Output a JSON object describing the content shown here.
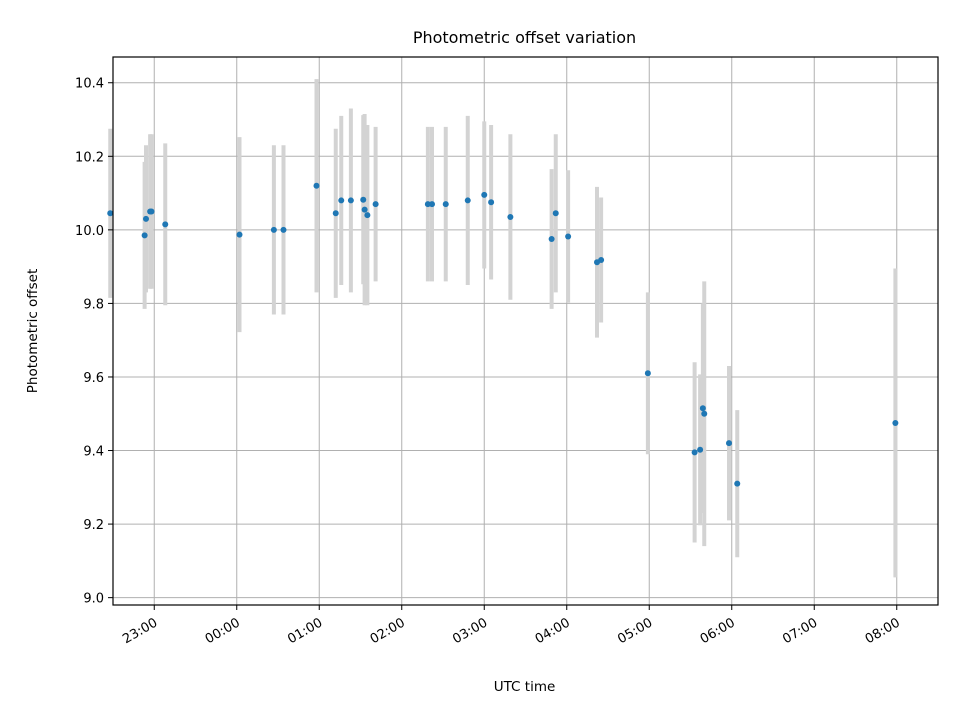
{
  "chart_data": {
    "type": "scatter",
    "title": "Photometric offset variation",
    "xlabel": "UTC time",
    "ylabel": "Photometric offset",
    "x_ticks": [
      "23:00",
      "00:00",
      "01:00",
      "02:00",
      "03:00",
      "04:00",
      "05:00",
      "06:00",
      "07:00",
      "08:00"
    ],
    "y_ticks": [
      "9.0",
      "9.2",
      "9.4",
      "9.6",
      "9.8",
      "10.0",
      "10.2",
      "10.4"
    ],
    "xlim": [
      "22:30",
      "08:30"
    ],
    "ylim": [
      8.98,
      10.47
    ],
    "grid": true,
    "point_color": "#1f77b4",
    "errorbar_color": "#d3d3d3",
    "points": [
      {
        "x": "22:28",
        "y": 10.045,
        "err": 0.23
      },
      {
        "x": "22:53",
        "y": 9.985,
        "err": 0.2
      },
      {
        "x": "22:54",
        "y": 10.03,
        "err": 0.2
      },
      {
        "x": "22:57",
        "y": 10.05,
        "err": 0.21
      },
      {
        "x": "22:58",
        "y": 10.05,
        "err": 0.21
      },
      {
        "x": "23:08",
        "y": 10.015,
        "err": 0.22
      },
      {
        "x": "00:02",
        "y": 9.987,
        "err": 0.265
      },
      {
        "x": "00:27",
        "y": 10.0,
        "err": 0.23
      },
      {
        "x": "00:34",
        "y": 10.0,
        "err": 0.23
      },
      {
        "x": "00:58",
        "y": 10.12,
        "err": 0.29
      },
      {
        "x": "01:12",
        "y": 10.045,
        "err": 0.23
      },
      {
        "x": "01:16",
        "y": 10.08,
        "err": 0.23
      },
      {
        "x": "01:23",
        "y": 10.08,
        "err": 0.25
      },
      {
        "x": "01:32",
        "y": 10.082,
        "err": 0.23
      },
      {
        "x": "01:33",
        "y": 10.055,
        "err": 0.26
      },
      {
        "x": "01:35",
        "y": 10.04,
        "err": 0.245
      },
      {
        "x": "01:41",
        "y": 10.07,
        "err": 0.21
      },
      {
        "x": "02:19",
        "y": 10.07,
        "err": 0.21
      },
      {
        "x": "02:22",
        "y": 10.07,
        "err": 0.21
      },
      {
        "x": "02:32",
        "y": 10.07,
        "err": 0.21
      },
      {
        "x": "02:48",
        "y": 10.08,
        "err": 0.23
      },
      {
        "x": "03:00",
        "y": 10.095,
        "err": 0.2
      },
      {
        "x": "03:05",
        "y": 10.075,
        "err": 0.21
      },
      {
        "x": "03:19",
        "y": 10.035,
        "err": 0.225
      },
      {
        "x": "03:49",
        "y": 9.975,
        "err": 0.19
      },
      {
        "x": "03:52",
        "y": 10.045,
        "err": 0.215
      },
      {
        "x": "04:01",
        "y": 9.982,
        "err": 0.18
      },
      {
        "x": "04:22",
        "y": 9.912,
        "err": 0.205
      },
      {
        "x": "04:25",
        "y": 9.918,
        "err": 0.17
      },
      {
        "x": "04:59",
        "y": 9.61,
        "err": 0.22
      },
      {
        "x": "05:33",
        "y": 9.395,
        "err": 0.245
      },
      {
        "x": "05:37",
        "y": 9.402,
        "err": 0.205
      },
      {
        "x": "05:39",
        "y": 9.515,
        "err": 0.285
      },
      {
        "x": "05:40",
        "y": 9.5,
        "err": 0.36
      },
      {
        "x": "05:58",
        "y": 9.42,
        "err": 0.21
      },
      {
        "x": "06:04",
        "y": 9.31,
        "err": 0.2
      },
      {
        "x": "07:59",
        "y": 9.475,
        "err": 0.42
      }
    ]
  }
}
